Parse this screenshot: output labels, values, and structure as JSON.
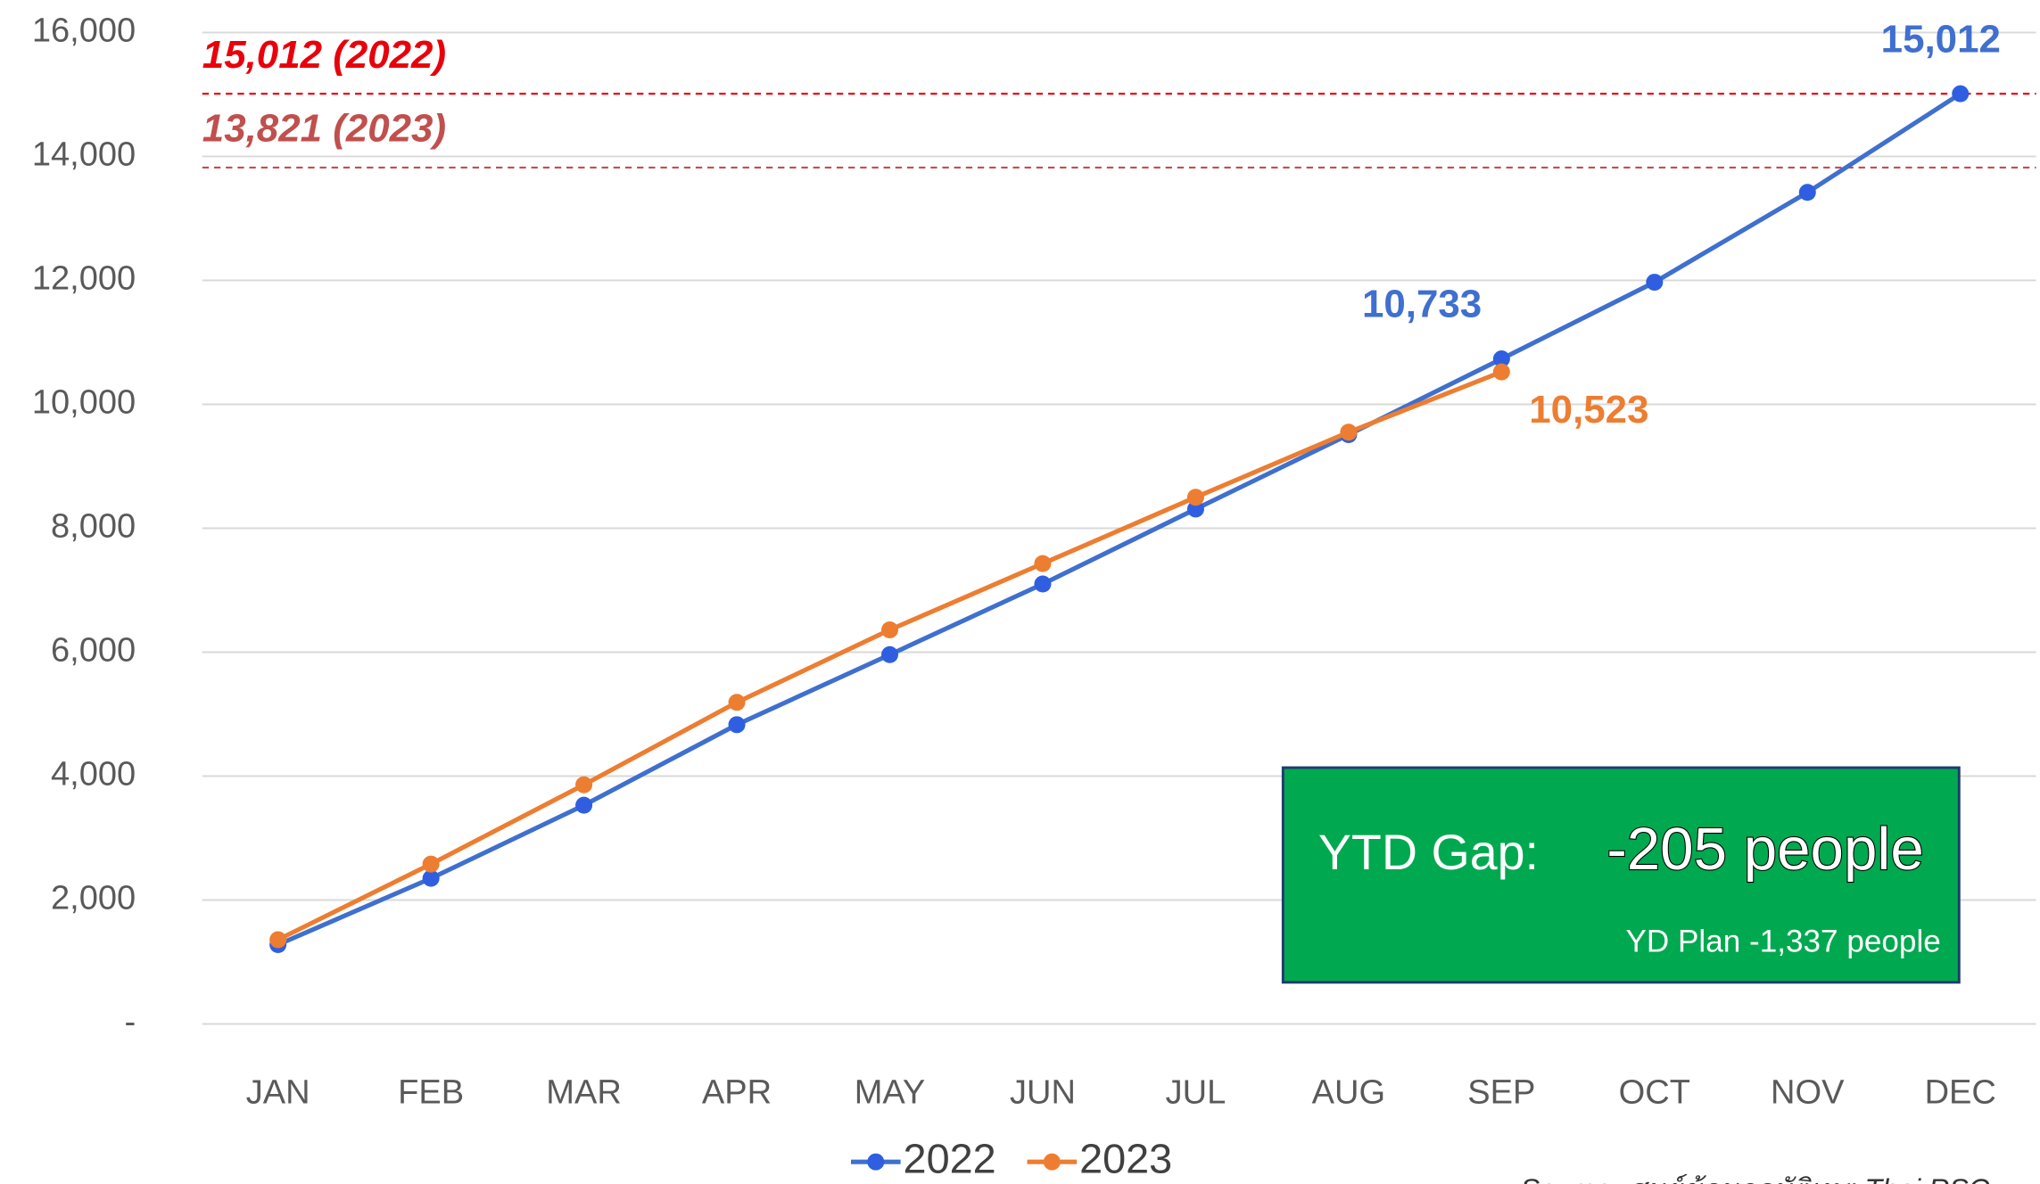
{
  "chart_data": {
    "type": "line",
    "categories": [
      "JAN",
      "FEB",
      "MAR",
      "APR",
      "MAY",
      "JUN",
      "JUL",
      "AUG",
      "SEP",
      "OCT",
      "NOV",
      "DEC"
    ],
    "series": [
      {
        "name": "2022",
        "color": "#3f6fcf",
        "marker_color": "#2f5fe0",
        "values": [
          1280,
          2350,
          3530,
          4830,
          5960,
          7100,
          8310,
          9510,
          10733,
          11970,
          13420,
          15012
        ],
        "value_labels": [
          null,
          null,
          null,
          null,
          null,
          null,
          null,
          null,
          "10,733",
          null,
          null,
          "15,012"
        ]
      },
      {
        "name": "2023",
        "color": "#ed7d31",
        "marker_color": "#ed7d31",
        "values": [
          1360,
          2580,
          3860,
          5190,
          6360,
          7430,
          8500,
          9550,
          10523,
          null,
          null,
          null
        ],
        "value_labels": [
          null,
          null,
          null,
          null,
          null,
          null,
          null,
          null,
          "10,523",
          null,
          null,
          null
        ]
      }
    ],
    "ylim": [
      0,
      16000
    ],
    "yticks": [
      {
        "value": 0,
        "label": "-"
      },
      {
        "value": 2000,
        "label": "2,000"
      },
      {
        "value": 4000,
        "label": "4,000"
      },
      {
        "value": 6000,
        "label": "6,000"
      },
      {
        "value": 8000,
        "label": "8,000"
      },
      {
        "value": 10000,
        "label": "10,000"
      },
      {
        "value": 12000,
        "label": "12,000"
      },
      {
        "value": 14000,
        "label": "14,000"
      },
      {
        "value": 16000,
        "label": "16,000"
      }
    ],
    "grid": true,
    "legend": "bottom",
    "ref_lines": [
      {
        "value": 15012,
        "label": "15,012 (2022)",
        "color": "#e8000b"
      },
      {
        "value": 13821,
        "label": "13,821 (2023)",
        "color": "#c0504d"
      }
    ],
    "annotation": {
      "title": "YTD Gap:",
      "value": "-205 people",
      "note": "YD Plan -1,337 people",
      "color": "#00a94f"
    },
    "source": "Source: ศูนย์ข้อมูลอุบัติเหตุ Thai RSC"
  }
}
